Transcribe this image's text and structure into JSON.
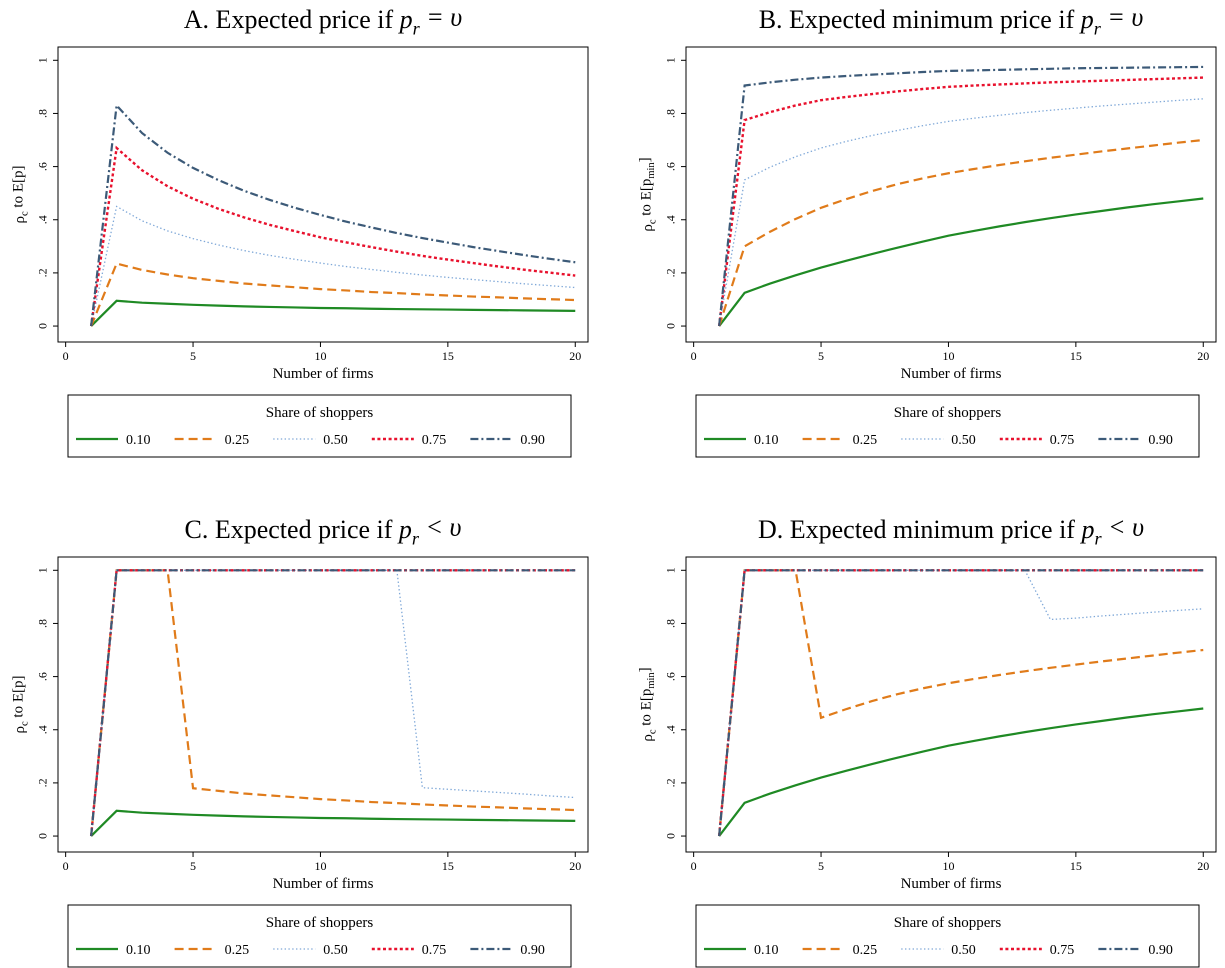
{
  "chart_data": [
    {
      "type": "line",
      "title": [
        {
          "text": "A. Expected price if "
        },
        {
          "text": "p",
          "style": "italic"
        },
        {
          "text": "r",
          "style": "italic-sub"
        },
        {
          "text": " = υ",
          "style": "italic"
        }
      ],
      "xlabel": "Number of firms",
      "ylabel": [
        {
          "text": "ρ"
        },
        {
          "text": "c",
          "style": "sub"
        },
        {
          "text": " to E[p]"
        }
      ],
      "x": [
        1,
        2,
        3,
        4,
        5,
        6,
        7,
        8,
        9,
        10,
        11,
        12,
        13,
        14,
        15,
        16,
        17,
        18,
        19,
        20
      ],
      "xlim": [
        -0.3,
        20.5
      ],
      "xticks": [
        0,
        5,
        10,
        15,
        20
      ],
      "ylim": [
        -0.06,
        1.05
      ],
      "yticks": [
        0,
        {
          "value": 0.2,
          "label": ".2"
        },
        {
          "value": 0.4,
          "label": ".4"
        },
        {
          "value": 0.6,
          "label": ".6"
        },
        {
          "value": 0.8,
          "label": ".8"
        },
        1
      ],
      "legend_title": "Share of shoppers",
      "series": [
        {
          "name": "0.10",
          "color": "#1f8a24",
          "dash": "solid",
          "values": [
            0,
            0.095,
            0.088,
            0.084,
            0.08,
            0.077,
            0.074,
            0.072,
            0.07,
            0.068,
            0.067,
            0.065,
            0.064,
            0.063,
            0.062,
            0.061,
            0.06,
            0.059,
            0.058,
            0.057
          ]
        },
        {
          "name": "0.25",
          "color": "#e07b1a",
          "dash": "dash",
          "values": [
            0,
            0.235,
            0.211,
            0.194,
            0.18,
            0.17,
            0.16,
            0.153,
            0.146,
            0.139,
            0.134,
            0.128,
            0.124,
            0.119,
            0.115,
            0.111,
            0.108,
            0.104,
            0.101,
            0.098
          ]
        },
        {
          "name": "0.50",
          "color": "#7fa8d8",
          "dash": "dot",
          "values": [
            0,
            0.45,
            0.396,
            0.358,
            0.329,
            0.305,
            0.284,
            0.266,
            0.251,
            0.237,
            0.224,
            0.213,
            0.202,
            0.192,
            0.183,
            0.175,
            0.167,
            0.159,
            0.152,
            0.145
          ]
        },
        {
          "name": "0.75",
          "color": "#e8112d",
          "dash": "shortdash",
          "values": [
            0,
            0.67,
            0.586,
            0.526,
            0.479,
            0.441,
            0.409,
            0.381,
            0.357,
            0.334,
            0.315,
            0.297,
            0.28,
            0.264,
            0.25,
            0.237,
            0.224,
            0.212,
            0.201,
            0.19
          ]
        },
        {
          "name": "0.90",
          "color": "#3c5a78",
          "dash": "dashdot",
          "values": [
            0,
            0.83,
            0.726,
            0.652,
            0.595,
            0.549,
            0.509,
            0.475,
            0.445,
            0.418,
            0.393,
            0.371,
            0.35,
            0.331,
            0.314,
            0.297,
            0.282,
            0.267,
            0.253,
            0.24
          ]
        }
      ]
    },
    {
      "type": "line",
      "title": [
        {
          "text": "B. Expected minimum price if "
        },
        {
          "text": "p",
          "style": "italic"
        },
        {
          "text": "r",
          "style": "italic-sub"
        },
        {
          "text": " = υ",
          "style": "italic"
        }
      ],
      "xlabel": "Number of firms",
      "ylabel": [
        {
          "text": "ρ"
        },
        {
          "text": "c",
          "style": "sub"
        },
        {
          "text": " to E[p"
        },
        {
          "text": "min",
          "style": "sub"
        },
        {
          "text": "]"
        }
      ],
      "x": [
        1,
        2,
        3,
        4,
        5,
        6,
        7,
        8,
        9,
        10,
        11,
        12,
        13,
        14,
        15,
        16,
        17,
        18,
        19,
        20
      ],
      "xlim": [
        -0.3,
        20.5
      ],
      "xticks": [
        0,
        5,
        10,
        15,
        20
      ],
      "ylim": [
        -0.06,
        1.05
      ],
      "yticks": [
        0,
        {
          "value": 0.2,
          "label": ".2"
        },
        {
          "value": 0.4,
          "label": ".4"
        },
        {
          "value": 0.6,
          "label": ".6"
        },
        {
          "value": 0.8,
          "label": ".8"
        },
        1
      ],
      "legend_title": "Share of shoppers",
      "series": [
        {
          "name": "0.10",
          "color": "#1f8a24",
          "dash": "solid",
          "values": [
            0,
            0.125,
            0.16,
            0.191,
            0.22,
            0.246,
            0.271,
            0.295,
            0.318,
            0.34,
            0.358,
            0.375,
            0.391,
            0.406,
            0.42,
            0.433,
            0.446,
            0.458,
            0.469,
            0.48
          ]
        },
        {
          "name": "0.25",
          "color": "#e07b1a",
          "dash": "dash",
          "values": [
            0,
            0.3,
            0.355,
            0.403,
            0.445,
            0.478,
            0.508,
            0.534,
            0.556,
            0.575,
            0.591,
            0.606,
            0.62,
            0.633,
            0.645,
            0.657,
            0.668,
            0.679,
            0.69,
            0.7
          ]
        },
        {
          "name": "0.50",
          "color": "#7fa8d8",
          "dash": "dot",
          "values": [
            0,
            0.55,
            0.598,
            0.637,
            0.67,
            0.695,
            0.717,
            0.736,
            0.754,
            0.77,
            0.782,
            0.793,
            0.803,
            0.812,
            0.82,
            0.828,
            0.835,
            0.842,
            0.849,
            0.855
          ]
        },
        {
          "name": "0.75",
          "color": "#e8112d",
          "dash": "shortdash",
          "values": [
            0,
            0.775,
            0.805,
            0.83,
            0.85,
            0.862,
            0.873,
            0.883,
            0.892,
            0.9,
            0.905,
            0.909,
            0.913,
            0.917,
            0.92,
            0.923,
            0.926,
            0.929,
            0.932,
            0.935
          ]
        },
        {
          "name": "0.90",
          "color": "#3c5a78",
          "dash": "dashdot",
          "values": [
            0,
            0.905,
            0.917,
            0.927,
            0.935,
            0.941,
            0.946,
            0.951,
            0.956,
            0.96,
            0.962,
            0.964,
            0.966,
            0.968,
            0.97,
            0.971,
            0.972,
            0.973,
            0.974,
            0.975
          ]
        }
      ]
    },
    {
      "type": "line",
      "title": [
        {
          "text": "C. Expected price if "
        },
        {
          "text": "p",
          "style": "italic"
        },
        {
          "text": "r",
          "style": "italic-sub"
        },
        {
          "text": " < υ",
          "style": "italic"
        }
      ],
      "xlabel": "Number of firms",
      "ylabel": [
        {
          "text": "ρ"
        },
        {
          "text": "c",
          "style": "sub"
        },
        {
          "text": " to E[p]"
        }
      ],
      "x": [
        1,
        2,
        3,
        4,
        5,
        6,
        7,
        8,
        9,
        10,
        11,
        12,
        13,
        14,
        15,
        16,
        17,
        18,
        19,
        20
      ],
      "xlim": [
        -0.3,
        20.5
      ],
      "xticks": [
        0,
        5,
        10,
        15,
        20
      ],
      "ylim": [
        -0.06,
        1.05
      ],
      "yticks": [
        0,
        {
          "value": 0.2,
          "label": ".2"
        },
        {
          "value": 0.4,
          "label": ".4"
        },
        {
          "value": 0.6,
          "label": ".6"
        },
        {
          "value": 0.8,
          "label": ".8"
        },
        1
      ],
      "legend_title": "Share of shoppers",
      "series": [
        {
          "name": "0.10",
          "color": "#1f8a24",
          "dash": "solid",
          "values": [
            0,
            0.095,
            0.088,
            0.084,
            0.08,
            0.077,
            0.074,
            0.072,
            0.07,
            0.068,
            0.067,
            0.065,
            0.064,
            0.063,
            0.062,
            0.061,
            0.06,
            0.059,
            0.058,
            0.057
          ]
        },
        {
          "name": "0.25",
          "color": "#e07b1a",
          "dash": "dash",
          "values": [
            0,
            1,
            1,
            1,
            0.18,
            0.17,
            0.16,
            0.153,
            0.146,
            0.139,
            0.134,
            0.128,
            0.124,
            0.119,
            0.115,
            0.111,
            0.108,
            0.104,
            0.101,
            0.098
          ]
        },
        {
          "name": "0.50",
          "color": "#7fa8d8",
          "dash": "dot",
          "values": [
            0,
            1,
            1,
            1,
            1,
            1,
            1,
            1,
            1,
            1,
            1,
            1,
            1,
            0.182,
            0.176,
            0.17,
            0.164,
            0.158,
            0.151,
            0.145
          ]
        },
        {
          "name": "0.75",
          "color": "#e8112d",
          "dash": "shortdash",
          "values": [
            0,
            1,
            1,
            1,
            1,
            1,
            1,
            1,
            1,
            1,
            1,
            1,
            1,
            1,
            1,
            1,
            1,
            1,
            1,
            1
          ]
        },
        {
          "name": "0.90",
          "color": "#3c5a78",
          "dash": "dashdot",
          "values": [
            0,
            1,
            1,
            1,
            1,
            1,
            1,
            1,
            1,
            1,
            1,
            1,
            1,
            1,
            1,
            1,
            1,
            1,
            1,
            1
          ]
        }
      ]
    },
    {
      "type": "line",
      "title": [
        {
          "text": "D. Expected minimum price if "
        },
        {
          "text": "p",
          "style": "italic"
        },
        {
          "text": "r",
          "style": "italic-sub"
        },
        {
          "text": " < υ",
          "style": "italic"
        }
      ],
      "xlabel": "Number of firms",
      "ylabel": [
        {
          "text": "ρ"
        },
        {
          "text": "c",
          "style": "sub"
        },
        {
          "text": " to E[p"
        },
        {
          "text": "min",
          "style": "sub"
        },
        {
          "text": "]"
        }
      ],
      "x": [
        1,
        2,
        3,
        4,
        5,
        6,
        7,
        8,
        9,
        10,
        11,
        12,
        13,
        14,
        15,
        16,
        17,
        18,
        19,
        20
      ],
      "xlim": [
        -0.3,
        20.5
      ],
      "xticks": [
        0,
        5,
        10,
        15,
        20
      ],
      "ylim": [
        -0.06,
        1.05
      ],
      "yticks": [
        0,
        {
          "value": 0.2,
          "label": ".2"
        },
        {
          "value": 0.4,
          "label": ".4"
        },
        {
          "value": 0.6,
          "label": ".6"
        },
        {
          "value": 0.8,
          "label": ".8"
        },
        1
      ],
      "legend_title": "Share of shoppers",
      "series": [
        {
          "name": "0.10",
          "color": "#1f8a24",
          "dash": "solid",
          "values": [
            0,
            0.125,
            0.16,
            0.191,
            0.22,
            0.246,
            0.271,
            0.295,
            0.318,
            0.34,
            0.358,
            0.375,
            0.391,
            0.406,
            0.42,
            0.433,
            0.446,
            0.458,
            0.469,
            0.48
          ]
        },
        {
          "name": "0.25",
          "color": "#e07b1a",
          "dash": "dash",
          "values": [
            0,
            1,
            1,
            1,
            0.445,
            0.478,
            0.508,
            0.534,
            0.556,
            0.575,
            0.591,
            0.606,
            0.62,
            0.633,
            0.645,
            0.657,
            0.668,
            0.679,
            0.69,
            0.7
          ]
        },
        {
          "name": "0.50",
          "color": "#7fa8d8",
          "dash": "dot",
          "values": [
            0,
            1,
            1,
            1,
            1,
            1,
            1,
            1,
            1,
            1,
            1,
            1,
            1,
            0.815,
            0.82,
            0.828,
            0.835,
            0.842,
            0.849,
            0.855
          ]
        },
        {
          "name": "0.75",
          "color": "#e8112d",
          "dash": "shortdash",
          "values": [
            0,
            1,
            1,
            1,
            1,
            1,
            1,
            1,
            1,
            1,
            1,
            1,
            1,
            1,
            1,
            1,
            1,
            1,
            1,
            1
          ]
        },
        {
          "name": "0.90",
          "color": "#3c5a78",
          "dash": "dashdot",
          "values": [
            0,
            1,
            1,
            1,
            1,
            1,
            1,
            1,
            1,
            1,
            1,
            1,
            1,
            1,
            1,
            1,
            1,
            1,
            1,
            1
          ]
        }
      ]
    }
  ]
}
